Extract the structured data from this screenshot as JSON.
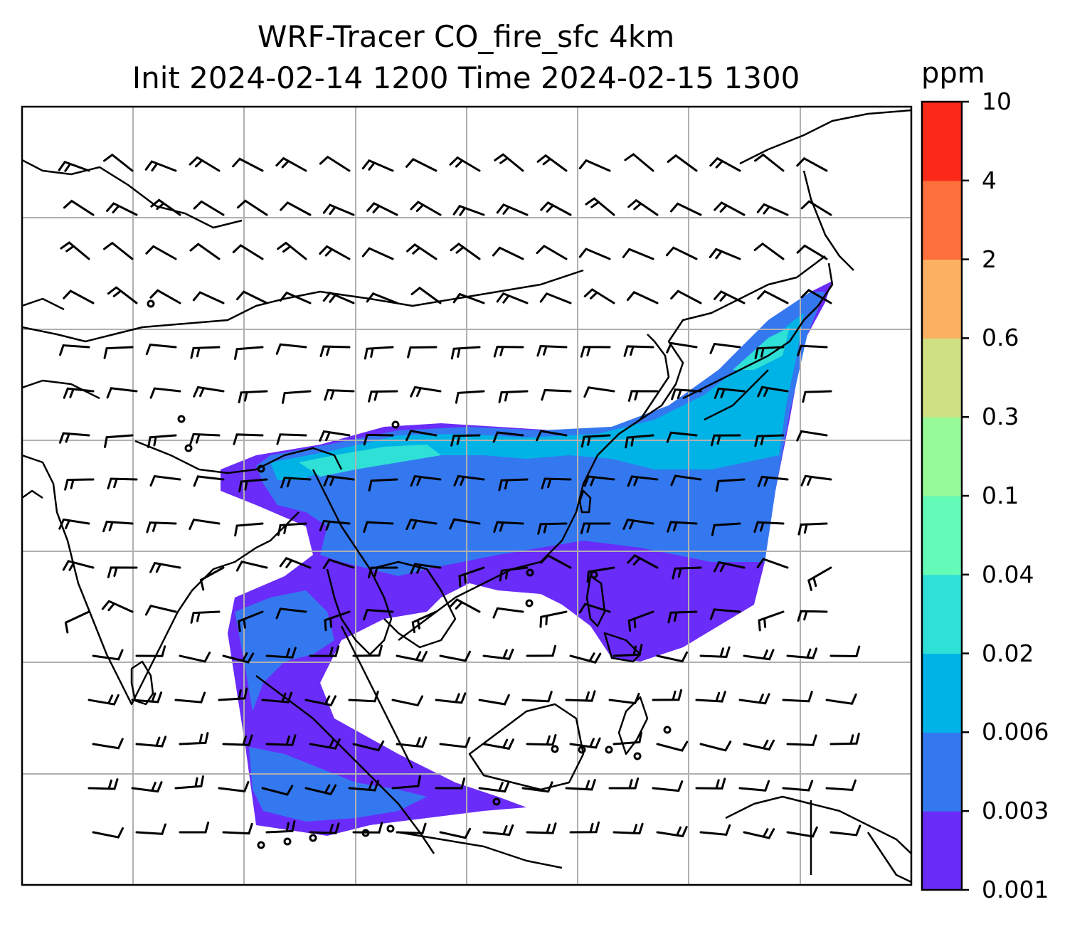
{
  "title": {
    "line1": "WRF-Tracer CO_fire_sfc 4km",
    "line2": "Init 2024-02-14 1200 Time 2024-02-15 1300"
  },
  "colorbar": {
    "unit": "ppm",
    "levels": [
      "0.001",
      "0.003",
      "0.006",
      "0.02",
      "0.04",
      "0.1",
      "0.3",
      "0.6",
      "2",
      "4",
      "10"
    ],
    "colors": [
      "#6a2cf8",
      "#3478f0",
      "#00b3e6",
      "#2fe0d6",
      "#64fbb8",
      "#97fa99",
      "#cfe083",
      "#fcb061",
      "#fd6f3b",
      "#fb2918"
    ]
  },
  "map": {
    "gridlines": true,
    "coastline_color": "#000000",
    "gridline_color": "#b0b0b0"
  }
}
